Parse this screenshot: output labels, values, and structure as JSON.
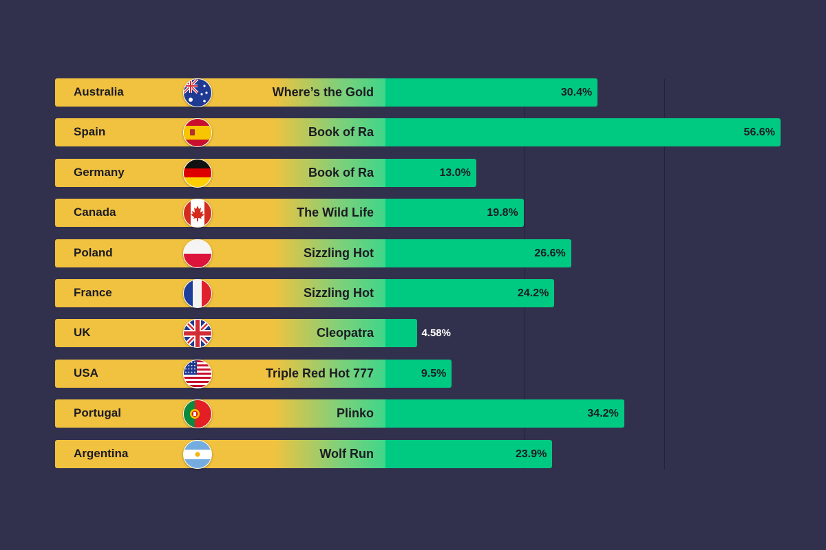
{
  "chart_data": {
    "type": "bar",
    "orientation": "horizontal",
    "value_unit": "%",
    "grid": true,
    "rows": [
      {
        "country": "Australia",
        "game": "Where’s the Gold",
        "value": 30.4,
        "label": "30.4%",
        "flag": "australia-flag-icon"
      },
      {
        "country": "Spain",
        "game": "Book of Ra",
        "value": 56.6,
        "label": "56.6%",
        "flag": "spain-flag-icon"
      },
      {
        "country": "Germany",
        "game": "Book of Ra",
        "value": 13.0,
        "label": "13.0%",
        "flag": "germany-flag-icon"
      },
      {
        "country": "Canada",
        "game": "The Wild Life",
        "value": 19.8,
        "label": "19.8%",
        "flag": "canada-flag-icon"
      },
      {
        "country": "Poland",
        "game": "Sizzling Hot",
        "value": 26.6,
        "label": "26.6%",
        "flag": "poland-flag-icon"
      },
      {
        "country": "France",
        "game": "Sizzling Hot",
        "value": 24.2,
        "label": "24.2%",
        "flag": "france-flag-icon"
      },
      {
        "country": "UK",
        "game": "Cleopatra",
        "value": 4.58,
        "label": "4.58%",
        "flag": "uk-flag-icon"
      },
      {
        "country": "USA",
        "game": "Triple Red Hot 777",
        "value": 9.5,
        "label": "9.5%",
        "flag": "usa-flag-icon"
      },
      {
        "country": "Portugal",
        "game": "Plinko",
        "value": 34.2,
        "label": "34.2%",
        "flag": "portugal-flag-icon"
      },
      {
        "country": "Argentina",
        "game": "Wolf Run",
        "value": 23.9,
        "label": "23.9%",
        "flag": "argentina-flag-icon"
      }
    ]
  },
  "colors": {
    "background": "#32314d",
    "label_band": "#f1c23f",
    "bar": "#00c982",
    "text_dark": "#1c1b24",
    "text_light": "#ffffff"
  }
}
